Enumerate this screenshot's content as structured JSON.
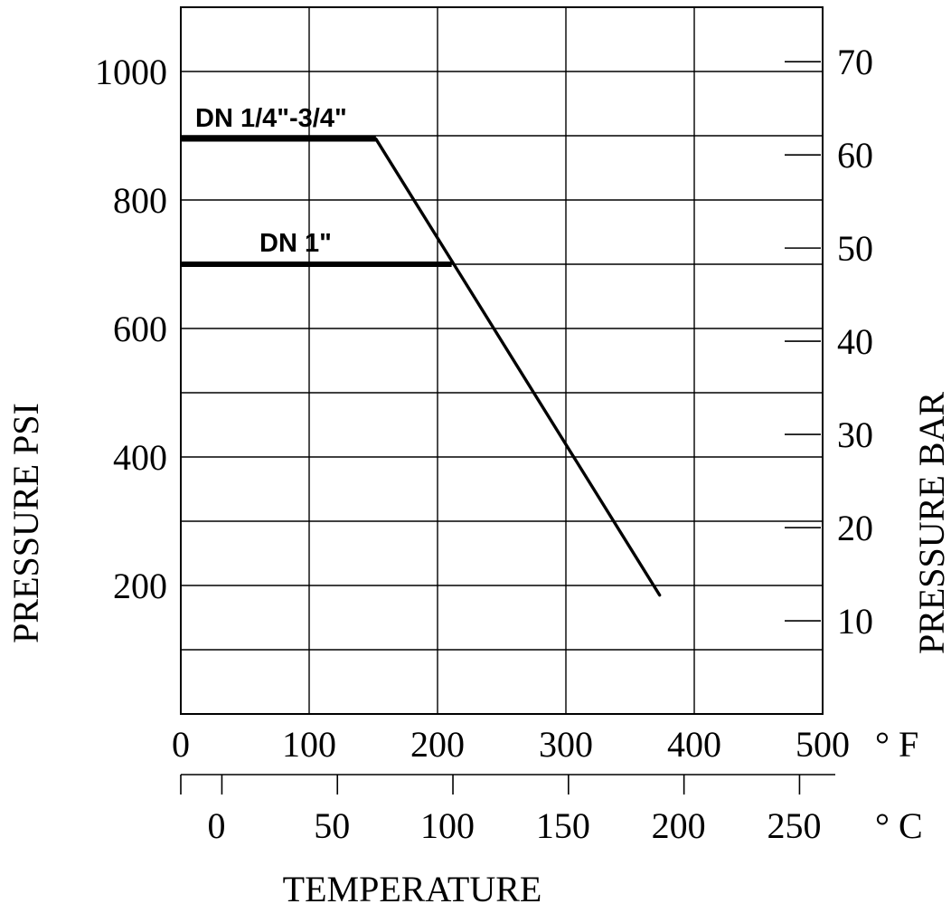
{
  "chart_data": {
    "type": "line",
    "x_label": "TEMPERATURE",
    "x_unit_f": "° F",
    "x_unit_c": "° C",
    "y_left_label": "PRESSURE PSI",
    "y_right_label": "PRESSURE BAR",
    "x_ticks_f": [
      "0",
      "100",
      "200",
      "300",
      "400",
      "500"
    ],
    "x_ticks_c": [
      "0",
      "50",
      "100",
      "150",
      "200",
      "250"
    ],
    "y_ticks_psi": [
      "200",
      "400",
      "600",
      "800",
      "1000"
    ],
    "y_ticks_bar": [
      "10",
      "20",
      "30",
      "40",
      "50",
      "60",
      "70"
    ],
    "xlim_f": [
      0,
      500
    ],
    "ylim_psi": [
      0,
      1100
    ],
    "grid": true,
    "series": [
      {
        "name": "DN 1/4\"-3/4\"",
        "x_f": [
          0,
          152,
          373
        ],
        "y_psi": [
          895,
          895,
          185
        ]
      },
      {
        "name": "DN 1\"",
        "x_f": [
          0,
          211
        ],
        "y_psi": [
          700,
          700
        ]
      }
    ]
  }
}
